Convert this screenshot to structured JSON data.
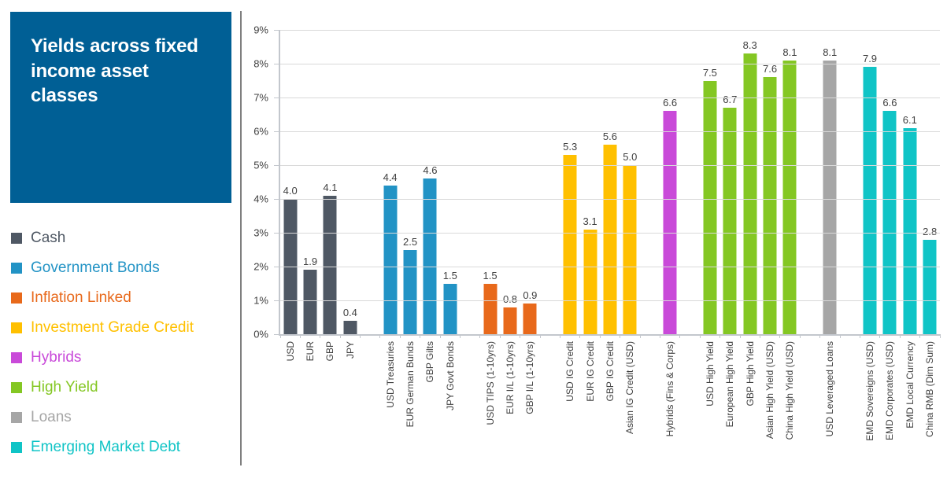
{
  "panel": {
    "title": "Yields across fixed income asset classes",
    "title_bg": "#005f95",
    "legend": [
      {
        "label": "Cash",
        "color": "#4f5864"
      },
      {
        "label": "Government Bonds",
        "color": "#2293c5"
      },
      {
        "label": "Inflation Linked",
        "color": "#e8691b"
      },
      {
        "label": "Investment Grade Credit",
        "color": "#ffc000"
      },
      {
        "label": "Hybrids",
        "color": "#c94ad9"
      },
      {
        "label": "High Yield",
        "color": "#84c723"
      },
      {
        "label": "Loans",
        "color": "#a6a6a6"
      },
      {
        "label": "Emerging Market Debt",
        "color": "#10c4c6"
      }
    ]
  },
  "chart_data": {
    "type": "bar",
    "title": "Yields across fixed income asset classes",
    "xlabel": "",
    "ylabel": "",
    "ylim": [
      0,
      9
    ],
    "yticks": [
      0,
      1,
      2,
      3,
      4,
      5,
      6,
      7,
      8,
      9
    ],
    "ytick_labels": [
      "0%",
      "1%",
      "2%",
      "3%",
      "4%",
      "5%",
      "6%",
      "7%",
      "8%",
      "9%"
    ],
    "grid": true,
    "legend_position": "left",
    "value_labels": "one-decimal above bars",
    "groups": [
      {
        "name": "Cash",
        "color": "#4f5864",
        "bars": [
          {
            "label": "USD",
            "value": 4.0
          },
          {
            "label": "EUR",
            "value": 1.9
          },
          {
            "label": "GBP",
            "value": 4.1
          },
          {
            "label": "JPY",
            "value": 0.4
          }
        ]
      },
      {
        "name": "Government Bonds",
        "color": "#2293c5",
        "bars": [
          {
            "label": "USD Treasuries",
            "value": 4.4
          },
          {
            "label": "EUR German Bunds",
            "value": 2.5
          },
          {
            "label": "GBP Gilts",
            "value": 4.6
          },
          {
            "label": "JPY Govt Bonds",
            "value": 1.5
          }
        ]
      },
      {
        "name": "Inflation Linked",
        "color": "#e8691b",
        "bars": [
          {
            "label": "USD TIPS (1-10yrs)",
            "value": 1.5
          },
          {
            "label": "EUR I/L (1-10yrs)",
            "value": 0.8
          },
          {
            "label": "GBP I/L (1-10yrs)",
            "value": 0.9
          }
        ]
      },
      {
        "name": "Investment Grade Credit",
        "color": "#ffc000",
        "bars": [
          {
            "label": "USD IG Credit",
            "value": 5.3
          },
          {
            "label": "EUR IG Credit",
            "value": 3.1
          },
          {
            "label": "GBP IG Credit",
            "value": 5.6
          },
          {
            "label": "Asian IG Credit (USD)",
            "value": 5.0
          }
        ]
      },
      {
        "name": "Hybrids",
        "color": "#c94ad9",
        "bars": [
          {
            "label": "Hybrids (Fins & Corps)",
            "value": 6.6
          }
        ]
      },
      {
        "name": "High Yield",
        "color": "#84c723",
        "bars": [
          {
            "label": "USD High Yield",
            "value": 7.5
          },
          {
            "label": "European High Yield",
            "value": 6.7
          },
          {
            "label": "GBP High Yield",
            "value": 8.3
          },
          {
            "label": "Asian High Yield (USD)",
            "value": 7.6
          },
          {
            "label": "China High Yield (USD)",
            "value": 8.1
          }
        ]
      },
      {
        "name": "Loans",
        "color": "#a6a6a6",
        "bars": [
          {
            "label": "USD Leveraged Loans",
            "value": 8.1
          }
        ]
      },
      {
        "name": "Emerging Market Debt",
        "color": "#10c4c6",
        "bars": [
          {
            "label": "EMD Sovereigns (USD)",
            "value": 7.9
          },
          {
            "label": "EMD Corporates (USD)",
            "value": 6.6
          },
          {
            "label": "EMD Local Currency",
            "value": 6.1
          },
          {
            "label": "China RMB (Dim Sum)",
            "value": 2.8
          }
        ]
      }
    ]
  }
}
